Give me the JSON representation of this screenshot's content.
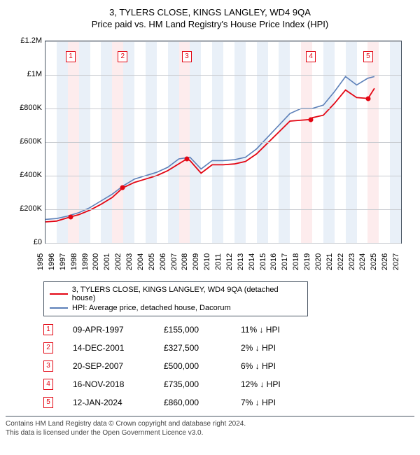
{
  "title_main": "3, TYLERS CLOSE, KINGS LANGLEY, WD4 9QA",
  "title_sub": "Price paid vs. HM Land Registry's House Price Index (HPI)",
  "chart": {
    "type": "line",
    "x_domain": [
      1995,
      2027
    ],
    "y_domain": [
      0,
      1200000
    ],
    "background_color": "#ffffff",
    "grid_color": "#c8cbd0",
    "border_color": "#495563",
    "alt_band_color": "#e9f0f8",
    "highlight_band_color": "#fdeced",
    "yticks": [
      {
        "v": 0,
        "label": "£0"
      },
      {
        "v": 200000,
        "label": "£200K"
      },
      {
        "v": 400000,
        "label": "£400K"
      },
      {
        "v": 600000,
        "label": "£600K"
      },
      {
        "v": 800000,
        "label": "£800K"
      },
      {
        "v": 1000000,
        "label": "£1M"
      },
      {
        "v": 1200000,
        "label": "£1.2M"
      }
    ],
    "xticks": [
      1995,
      1996,
      1997,
      1998,
      1999,
      2000,
      2001,
      2002,
      2003,
      2004,
      2005,
      2006,
      2007,
      2008,
      2009,
      2010,
      2011,
      2012,
      2013,
      2014,
      2015,
      2016,
      2017,
      2018,
      2019,
      2020,
      2021,
      2022,
      2023,
      2024,
      2025,
      2026,
      2027
    ],
    "highlight_years": [
      1997,
      2001,
      2007,
      2018,
      2024
    ],
    "series": {
      "hpi": {
        "color": "#5b7fb8",
        "width": 1.6,
        "label": "HPI: Average price, detached house, Dacorum",
        "points": [
          [
            1995,
            140000
          ],
          [
            1996,
            145000
          ],
          [
            1997,
            160000
          ],
          [
            1998,
            180000
          ],
          [
            1999,
            210000
          ],
          [
            2000,
            250000
          ],
          [
            2001,
            290000
          ],
          [
            2002,
            340000
          ],
          [
            2003,
            380000
          ],
          [
            2004,
            400000
          ],
          [
            2005,
            420000
          ],
          [
            2006,
            450000
          ],
          [
            2007,
            500000
          ],
          [
            2008,
            510000
          ],
          [
            2009,
            440000
          ],
          [
            2010,
            490000
          ],
          [
            2011,
            490000
          ],
          [
            2012,
            495000
          ],
          [
            2013,
            510000
          ],
          [
            2014,
            560000
          ],
          [
            2015,
            630000
          ],
          [
            2016,
            700000
          ],
          [
            2017,
            770000
          ],
          [
            2018,
            800000
          ],
          [
            2019,
            800000
          ],
          [
            2020,
            820000
          ],
          [
            2021,
            900000
          ],
          [
            2022,
            990000
          ],
          [
            2023,
            940000
          ],
          [
            2024,
            980000
          ],
          [
            2024.6,
            990000
          ]
        ]
      },
      "property": {
        "color": "#e30613",
        "width": 1.8,
        "label": "3, TYLERS CLOSE, KINGS LANGLEY, WD4 9QA (detached house)",
        "points": [
          [
            1995,
            125000
          ],
          [
            1996,
            130000
          ],
          [
            1997.27,
            155000
          ],
          [
            1998,
            168000
          ],
          [
            1999,
            195000
          ],
          [
            2000,
            230000
          ],
          [
            2001,
            270000
          ],
          [
            2001.95,
            327500
          ],
          [
            2003,
            360000
          ],
          [
            2004,
            380000
          ],
          [
            2005,
            400000
          ],
          [
            2006,
            430000
          ],
          [
            2007.72,
            500000
          ],
          [
            2008,
            490000
          ],
          [
            2009,
            415000
          ],
          [
            2010,
            465000
          ],
          [
            2011,
            465000
          ],
          [
            2012,
            470000
          ],
          [
            2013,
            485000
          ],
          [
            2014,
            530000
          ],
          [
            2015,
            595000
          ],
          [
            2016,
            660000
          ],
          [
            2017,
            725000
          ],
          [
            2018.88,
            735000
          ],
          [
            2019,
            745000
          ],
          [
            2020,
            760000
          ],
          [
            2021,
            830000
          ],
          [
            2022,
            910000
          ],
          [
            2023,
            865000
          ],
          [
            2024.03,
            860000
          ],
          [
            2024.6,
            920000
          ]
        ],
        "sale_points": [
          [
            1997.27,
            155000
          ],
          [
            2001.95,
            327500
          ],
          [
            2007.72,
            500000
          ],
          [
            2018.88,
            735000
          ],
          [
            2024.03,
            860000
          ]
        ]
      }
    },
    "markers": [
      {
        "n": "1",
        "year": 1997.27
      },
      {
        "n": "2",
        "year": 2001.95
      },
      {
        "n": "3",
        "year": 2007.72
      },
      {
        "n": "4",
        "year": 2018.88
      },
      {
        "n": "5",
        "year": 2024.03
      }
    ]
  },
  "legend": [
    {
      "color": "#e30613",
      "label": "3, TYLERS CLOSE, KINGS LANGLEY, WD4 9QA (detached house)"
    },
    {
      "color": "#5b7fb8",
      "label": "HPI: Average price, detached house, Dacorum"
    }
  ],
  "transactions": [
    {
      "n": "1",
      "date": "09-APR-1997",
      "price": "£155,000",
      "diff": "11% ↓ HPI"
    },
    {
      "n": "2",
      "date": "14-DEC-2001",
      "price": "£327,500",
      "diff": "2% ↓ HPI"
    },
    {
      "n": "3",
      "date": "20-SEP-2007",
      "price": "£500,000",
      "diff": "6% ↓ HPI"
    },
    {
      "n": "4",
      "date": "16-NOV-2018",
      "price": "£735,000",
      "diff": "12% ↓ HPI"
    },
    {
      "n": "5",
      "date": "12-JAN-2024",
      "price": "£860,000",
      "diff": "7% ↓ HPI"
    }
  ],
  "marker_border_color": "#e30613",
  "footer_line1": "Contains HM Land Registry data © Crown copyright and database right 2024.",
  "footer_line2": "This data is licensed under the Open Government Licence v3.0."
}
